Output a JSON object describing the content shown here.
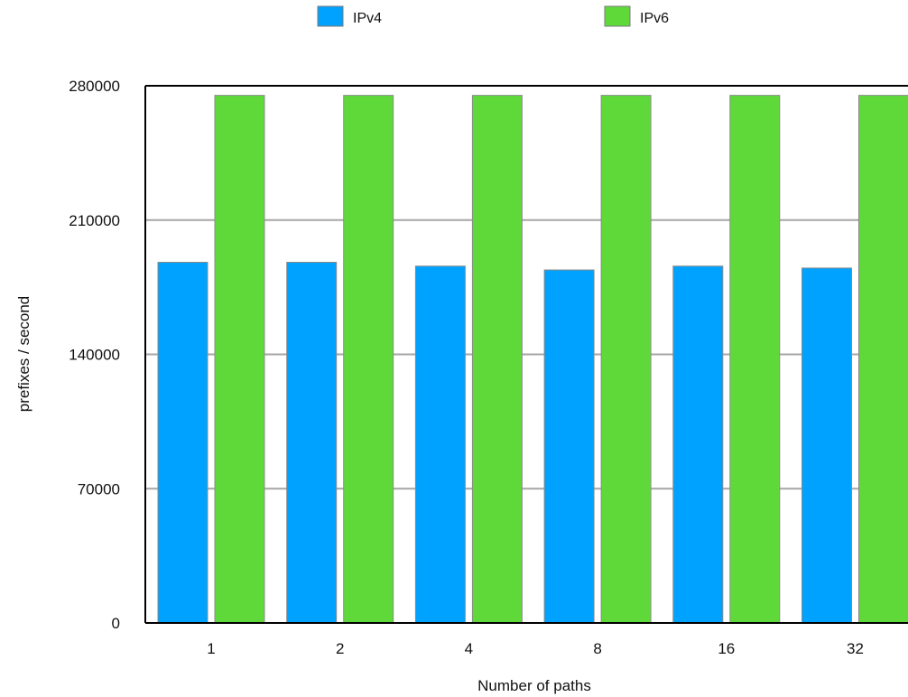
{
  "chart_data": {
    "type": "bar",
    "xlabel": "Number of paths",
    "ylabel": "prefixes / second",
    "categories": [
      "1",
      "2",
      "4",
      "8",
      "16",
      "32"
    ],
    "series": [
      {
        "name": "IPv4",
        "color": "#00a2ff",
        "values": [
          188000,
          188000,
          186000,
          184000,
          186000,
          185000
        ]
      },
      {
        "name": "IPv6",
        "color": "#5fd93a",
        "values": [
          275000,
          275000,
          275000,
          275000,
          275000,
          275000
        ]
      }
    ],
    "ylim": [
      0,
      280000
    ],
    "yticks": [
      0,
      70000,
      140000,
      210000,
      280000
    ],
    "ytick_labels": [
      "0",
      "70000",
      "140000",
      "210000",
      "280000"
    ],
    "grid": true,
    "legend_position": "top-center"
  }
}
